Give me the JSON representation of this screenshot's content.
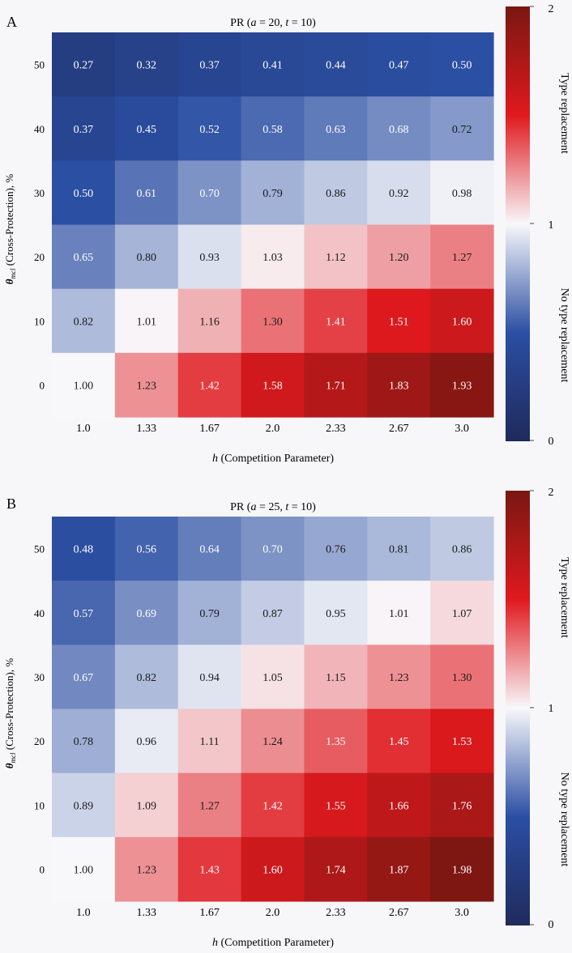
{
  "figure": {
    "panels": [
      {
        "panel_label": "A",
        "title_prefix": "PR (",
        "title_a_var": "a",
        "title_a_eq": " = 20, ",
        "title_t_var": "t",
        "title_t_eq": " = 10)",
        "xlabel_var": "h",
        "xlabel_text": " (Competition Parameter)",
        "ylabel_var": "θ",
        "ylabel_sub": "mcl",
        "ylabel_text": " (Cross-Protection), %",
        "colorbar": {
          "max_label": "2",
          "mid_label": "1",
          "min_label": "0",
          "upper_text": "Type replacement",
          "lower_text": "No type replacement"
        }
      },
      {
        "panel_label": "B",
        "title_prefix": "PR (",
        "title_a_var": "a",
        "title_a_eq": " = 25, ",
        "title_t_var": "t",
        "title_t_eq": " = 10)",
        "xlabel_var": "h",
        "xlabel_text": " (Competition Parameter)",
        "ylabel_var": "θ",
        "ylabel_sub": "mcl",
        "ylabel_text": " (Cross-Protection), %",
        "colorbar": {
          "max_label": "2",
          "mid_label": "1",
          "min_label": "0",
          "upper_text": "Type replacement",
          "lower_text": "No type replacement"
        }
      }
    ]
  },
  "colors": {
    "low": "#1f2a5c",
    "low_mid": "#2b4fa3",
    "mid": "#f8f8fb",
    "high_mid": "#e0191e",
    "high": "#7a1712"
  },
  "chart_data": [
    {
      "type": "heatmap",
      "title": "PR (a = 20, t = 10)",
      "xlabel": "h (Competition Parameter)",
      "ylabel": "θmcl (Cross-Protection), %",
      "x_categories": [
        "1.0",
        "1.33",
        "1.67",
        "2.0",
        "2.33",
        "2.67",
        "3.0"
      ],
      "y_categories": [
        "50",
        "40",
        "30",
        "20",
        "10",
        "0"
      ],
      "value_range": [
        0,
        2
      ],
      "values": [
        [
          0.27,
          0.32,
          0.37,
          0.41,
          0.44,
          0.47,
          0.5
        ],
        [
          0.37,
          0.45,
          0.52,
          0.58,
          0.63,
          0.68,
          0.72
        ],
        [
          0.5,
          0.61,
          0.7,
          0.79,
          0.86,
          0.92,
          0.98
        ],
        [
          0.65,
          0.8,
          0.93,
          1.03,
          1.12,
          1.2,
          1.27
        ],
        [
          0.82,
          1.01,
          1.16,
          1.3,
          1.41,
          1.51,
          1.6
        ],
        [
          1.0,
          1.23,
          1.42,
          1.58,
          1.71,
          1.83,
          1.93
        ]
      ]
    },
    {
      "type": "heatmap",
      "title": "PR (a = 25, t = 10)",
      "xlabel": "h (Competition Parameter)",
      "ylabel": "θmcl (Cross-Protection), %",
      "x_categories": [
        "1.0",
        "1.33",
        "1.67",
        "2.0",
        "2.33",
        "2.67",
        "3.0"
      ],
      "y_categories": [
        "50",
        "40",
        "30",
        "20",
        "10",
        "0"
      ],
      "value_range": [
        0,
        2
      ],
      "values": [
        [
          0.48,
          0.56,
          0.64,
          0.7,
          0.76,
          0.81,
          0.86
        ],
        [
          0.57,
          0.69,
          0.79,
          0.87,
          0.95,
          1.01,
          1.07
        ],
        [
          0.67,
          0.82,
          0.94,
          1.05,
          1.15,
          1.23,
          1.3
        ],
        [
          0.78,
          0.96,
          1.11,
          1.24,
          1.35,
          1.45,
          1.53
        ],
        [
          0.89,
          1.09,
          1.27,
          1.42,
          1.55,
          1.66,
          1.76
        ],
        [
          1.0,
          1.23,
          1.43,
          1.6,
          1.74,
          1.87,
          1.98
        ]
      ]
    }
  ]
}
